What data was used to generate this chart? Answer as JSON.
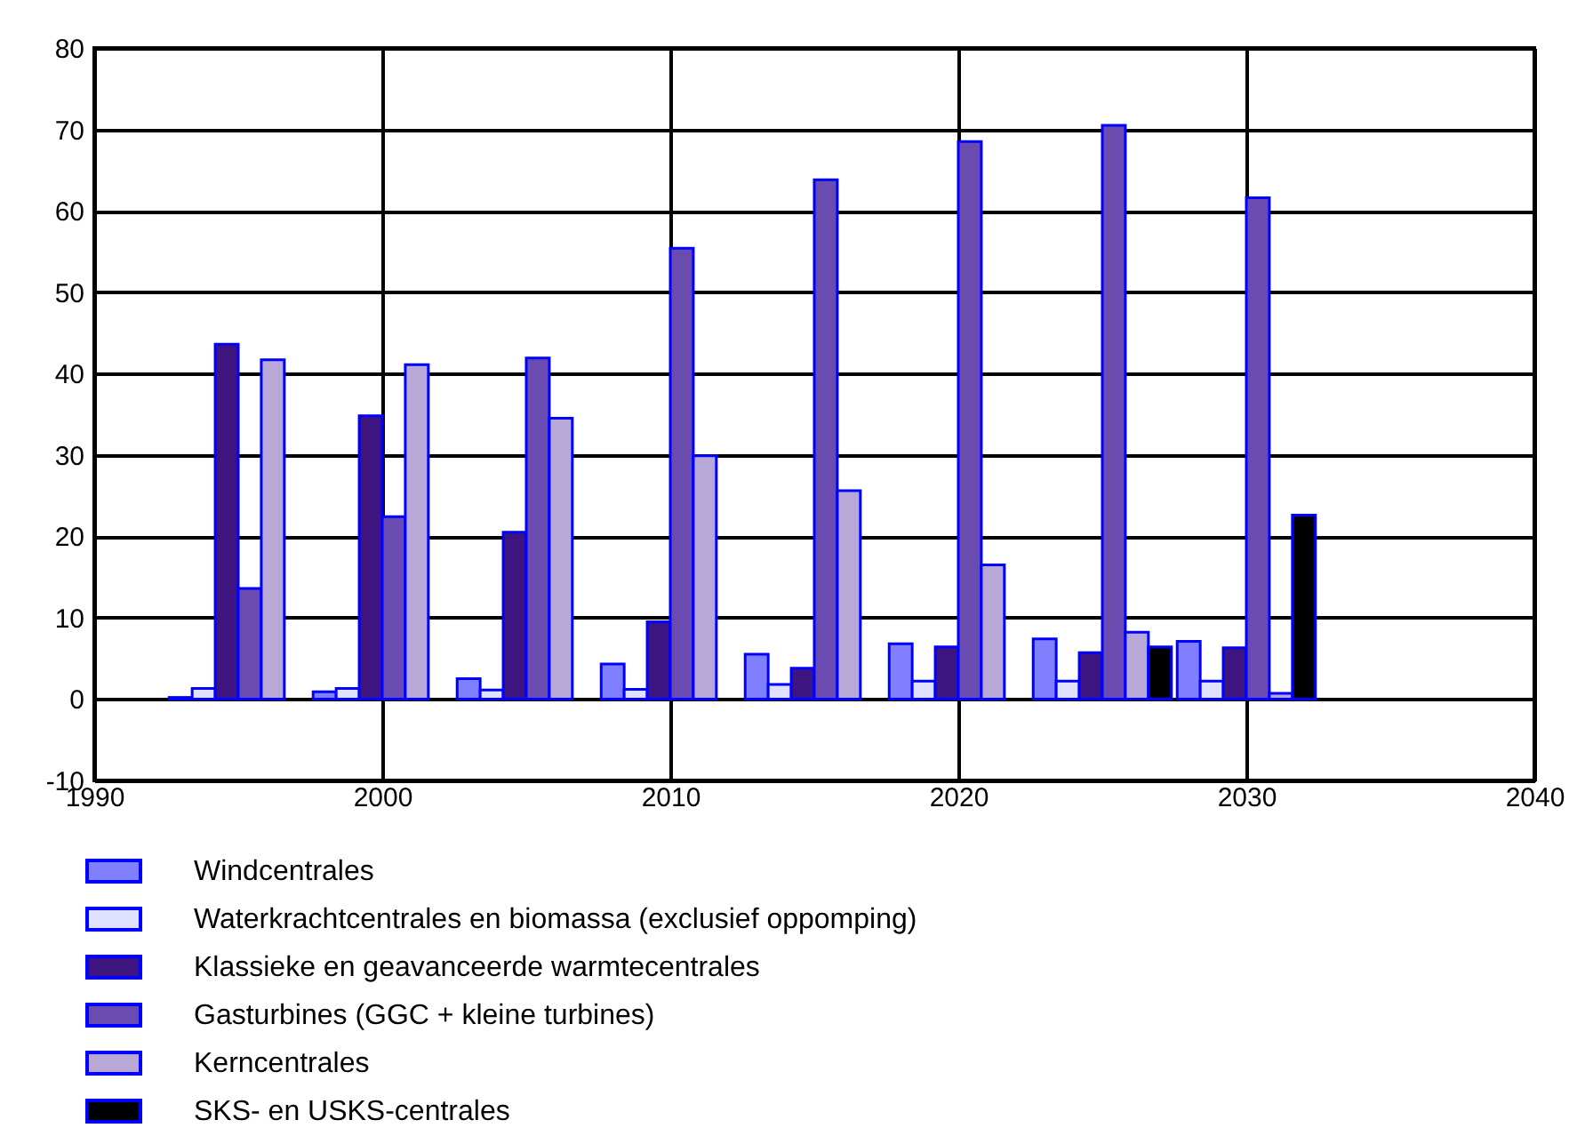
{
  "chart_data": {
    "type": "bar",
    "x": [
      1995,
      2000,
      2005,
      2010,
      2015,
      2020,
      2025,
      2030
    ],
    "series": [
      {
        "name": "Windcentrales",
        "color": "#8080ff",
        "values": [
          0.2,
          0.9,
          2.5,
          4.3,
          5.5,
          6.8,
          7.4,
          7.1
        ]
      },
      {
        "name": "Waterkrachtcentrales en biomassa (exclusief oppomping)",
        "color": "#e0e0ff",
        "values": [
          1.3,
          1.3,
          1.1,
          1.2,
          1.8,
          2.2,
          2.2,
          2.2
        ]
      },
      {
        "name": "Klassieke en geavanceerde warmtecentrales",
        "color": "#3d1480",
        "values": [
          43.6,
          34.8,
          20.5,
          9.5,
          3.8,
          6.4,
          5.7,
          6.3
        ]
      },
      {
        "name": "Gasturbines (GGC + kleine turbines)",
        "color": "#6a4bb0",
        "values": [
          13.6,
          22.4,
          41.9,
          55.4,
          63.8,
          68.5,
          70.5,
          61.6
        ]
      },
      {
        "name": "Kerncentrales",
        "color": "#b8a8d8",
        "values": [
          41.7,
          41.1,
          34.5,
          29.9,
          25.6,
          16.5,
          8.2,
          0.7
        ]
      },
      {
        "name": "SKS- en USKS-centrales",
        "color": "#000000",
        "values": [
          null,
          null,
          null,
          null,
          null,
          null,
          6.4,
          22.6
        ]
      }
    ],
    "xlim": [
      1990,
      2040
    ],
    "xticks": [
      1990,
      2000,
      2010,
      2020,
      2030,
      2040
    ],
    "ylim": [
      -10,
      80
    ],
    "yticks": [
      -10,
      0,
      10,
      20,
      30,
      40,
      50,
      60,
      70,
      80
    ],
    "grid": true,
    "legend": "bottom"
  }
}
